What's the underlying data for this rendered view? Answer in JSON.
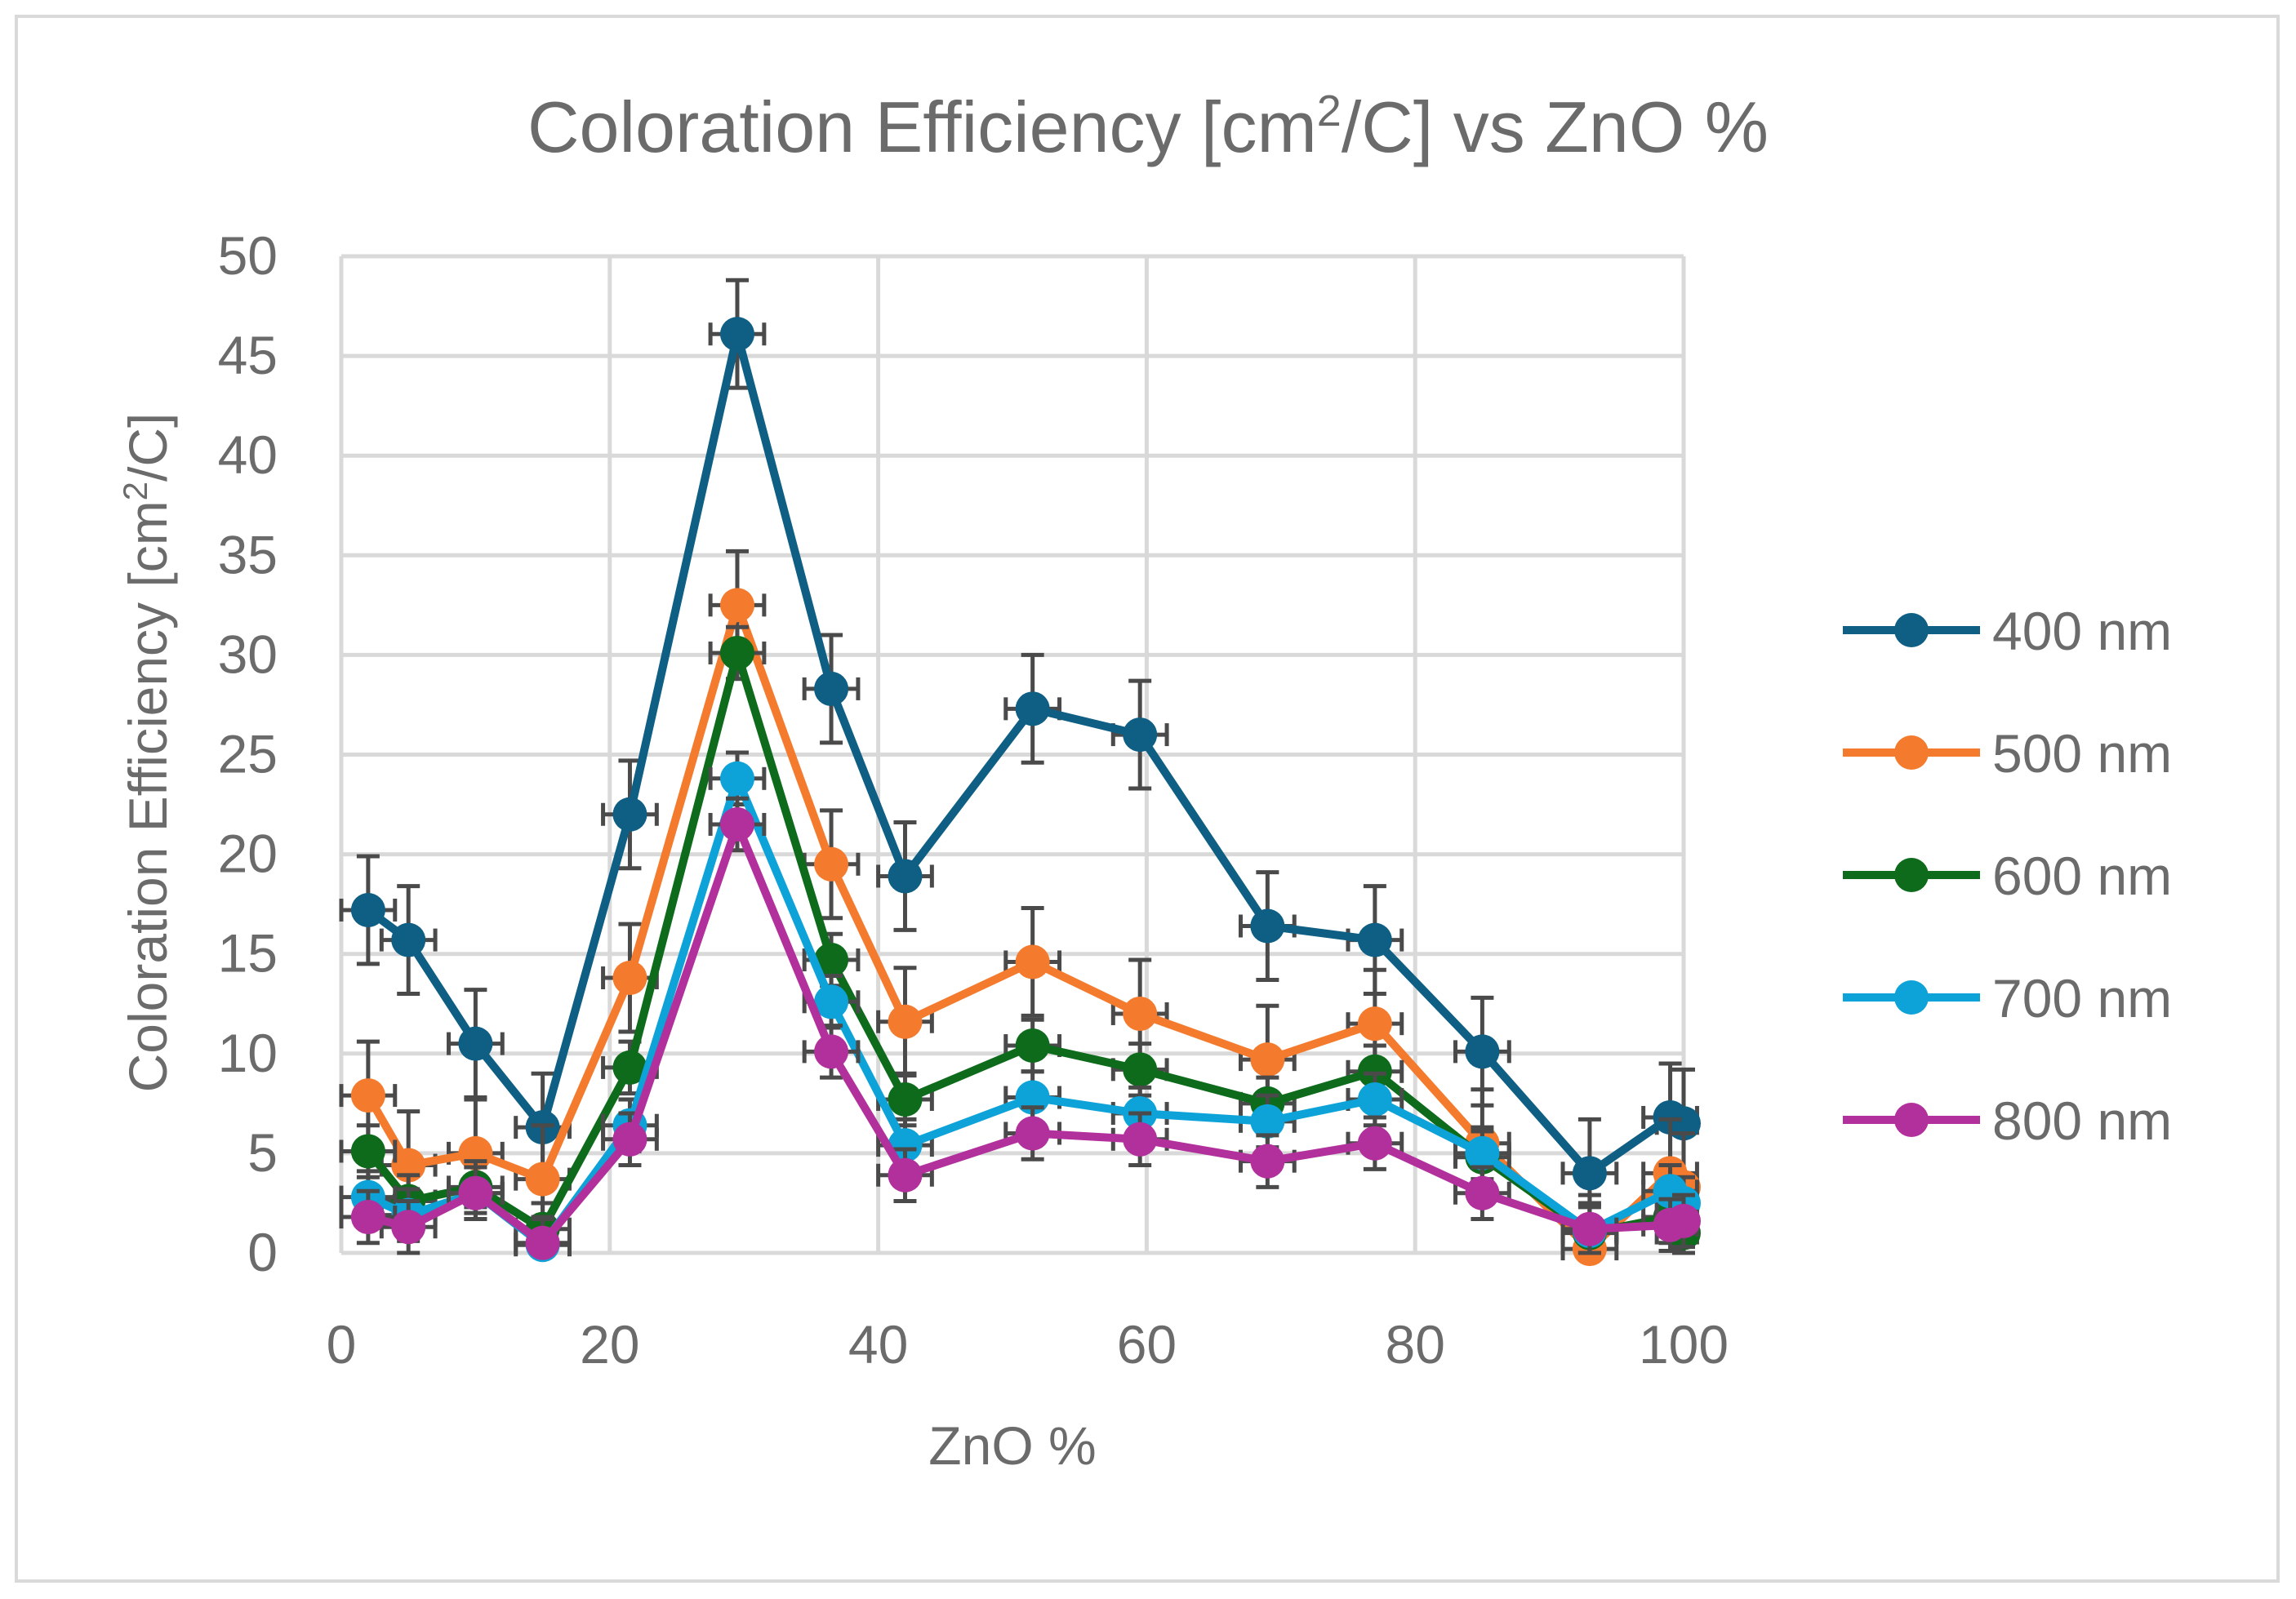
{
  "chart_data": {
    "type": "line",
    "title_main": "Coloration Efficiency [cm",
    "title_sup": "2",
    "title_rest": "/C] vs ZnO %",
    "xlabel": "ZnO %",
    "ylabel_main": "Coloration Efficiency [cm",
    "ylabel_sup": "2",
    "ylabel_rest": "/C]",
    "xlim": [
      0,
      100
    ],
    "ylim": [
      0,
      50
    ],
    "xticks": [
      0,
      20,
      40,
      60,
      80,
      100
    ],
    "yticks": [
      0,
      5,
      10,
      15,
      20,
      25,
      30,
      35,
      40,
      45,
      50
    ],
    "x_error": 2.0,
    "y_error": 2.7,
    "y_error_small": 1.3,
    "x": [
      2,
      5,
      10,
      15,
      21.5,
      29.5,
      36.5,
      42,
      51.5,
      59.5,
      69,
      77,
      85,
      93,
      99,
      100
    ],
    "series": [
      {
        "name": "400 nm",
        "color": "#0f5e84",
        "values": [
          17.2,
          15.7,
          10.5,
          6.3,
          22.0,
          46.1,
          28.3,
          18.9,
          27.3,
          26.0,
          16.4,
          15.7,
          10.1,
          4.0,
          6.8,
          6.5
        ]
      },
      {
        "name": "500 nm",
        "color": "#f47b2e",
        "values": [
          7.9,
          4.4,
          5.0,
          3.7,
          13.8,
          32.5,
          19.5,
          11.6,
          14.6,
          12.0,
          9.7,
          11.5,
          5.5,
          0.2,
          4.0,
          3.3
        ]
      },
      {
        "name": "600 nm",
        "color": "#0e6b1c",
        "values": [
          5.1,
          2.6,
          3.3,
          1.2,
          9.3,
          30.1,
          14.7,
          7.7,
          10.4,
          9.2,
          7.5,
          9.1,
          4.8,
          1.0,
          1.8,
          1.0
        ]
      },
      {
        "name": "700 nm",
        "color": "#0da2d8",
        "values": [
          2.8,
          1.9,
          3.0,
          0.4,
          6.4,
          23.8,
          12.6,
          5.4,
          7.8,
          7.0,
          6.6,
          7.7,
          5.0,
          1.1,
          3.1,
          2.5
        ]
      },
      {
        "name": "800 nm",
        "color": "#b2309c",
        "values": [
          1.8,
          1.3,
          3.0,
          0.5,
          5.7,
          21.5,
          10.1,
          3.9,
          6.0,
          5.7,
          4.6,
          5.5,
          3.0,
          1.2,
          1.4,
          1.6
        ]
      }
    ]
  }
}
